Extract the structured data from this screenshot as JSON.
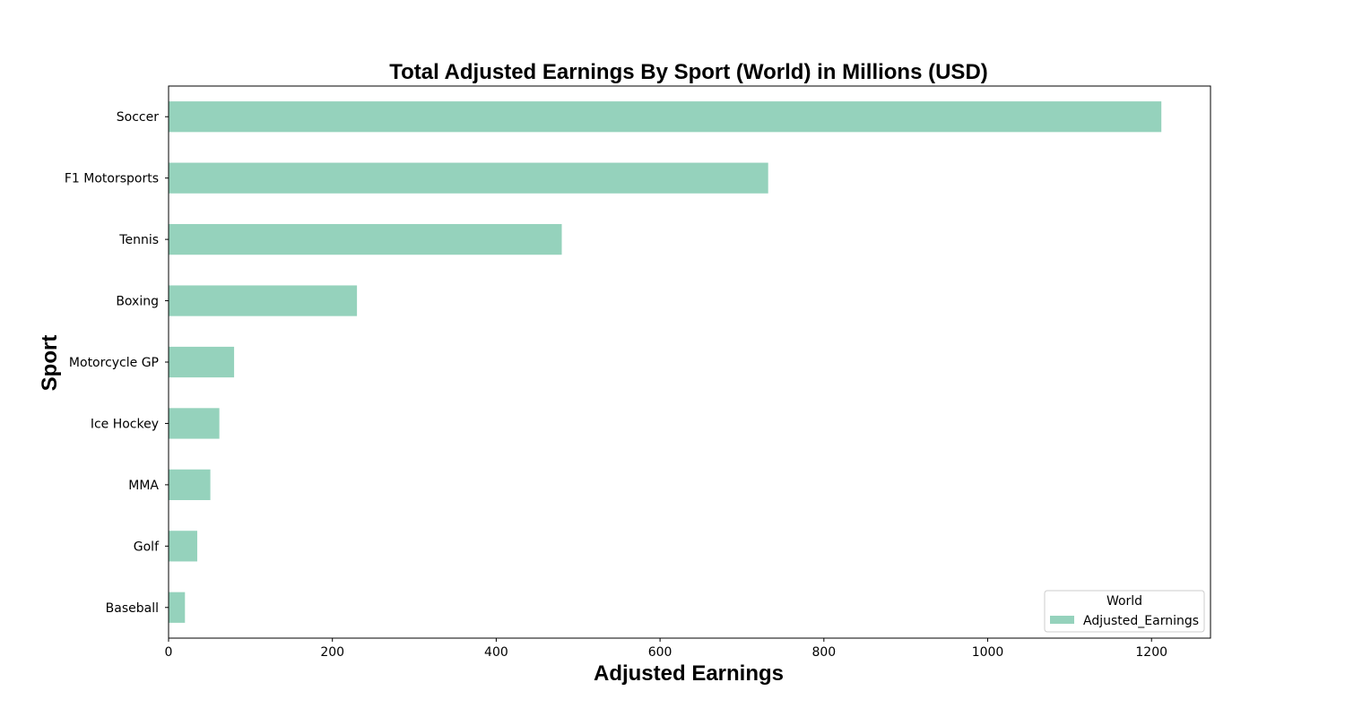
{
  "chart_data": {
    "type": "bar",
    "orientation": "horizontal",
    "title": "Total Adjusted Earnings By Sport (World) in Millions (USD)",
    "xlabel": "Adjusted Earnings",
    "ylabel": "Sport",
    "xlim": [
      0,
      1272
    ],
    "xticks": [
      0,
      200,
      400,
      600,
      800,
      1000,
      1200
    ],
    "grid": false,
    "categories": [
      "Soccer",
      "F1 Motorsports",
      "Tennis",
      "Boxing",
      "Motorcycle GP",
      "Ice Hockey",
      "MMA",
      "Golf",
      "Baseball"
    ],
    "series": [
      {
        "name": "Adjusted_Earnings",
        "color": "#95d2bc",
        "values": [
          1212,
          732,
          480,
          230,
          80,
          62,
          51,
          35,
          20
        ]
      }
    ],
    "legend": {
      "title": "World",
      "placement": "lower-right"
    }
  }
}
